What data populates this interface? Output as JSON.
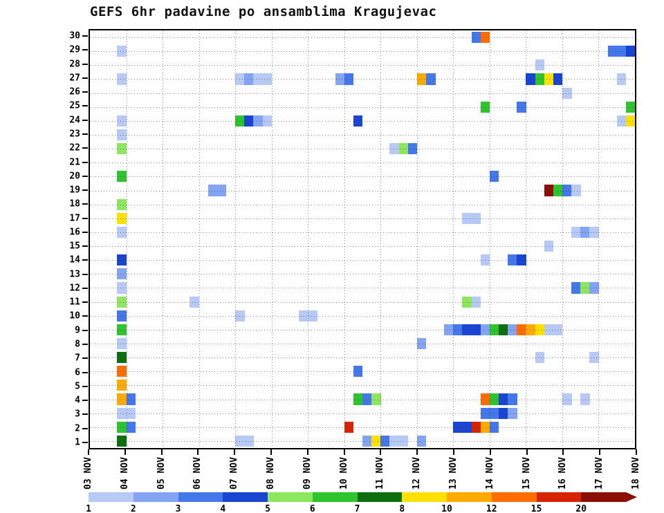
{
  "page": {
    "background": "#ffffff"
  },
  "chart_data": {
    "type": "heatmap",
    "title": "GEFS 6hr padavine po ansamblima Kragujevac",
    "x_tick_labels": [
      "03 NOV",
      "04 NOV",
      "05 NOV",
      "06 NOV",
      "07 NOV",
      "08 NOV",
      "09 NOV",
      "10 NOV",
      "11 NOV",
      "12 NOV",
      "13 NOV",
      "14 NOV",
      "15 NOV",
      "16 NOV",
      "17 NOV",
      "18 NOV"
    ],
    "steps_per_day": 4,
    "y_tick_labels": [
      30,
      29,
      28,
      27,
      26,
      25,
      24,
      23,
      22,
      21,
      20,
      19,
      18,
      17,
      16,
      15,
      14,
      13,
      12,
      11,
      10,
      9,
      8,
      7,
      6,
      5,
      4,
      3,
      2,
      1
    ],
    "legend_levels": [
      "1",
      "2",
      "3",
      "4",
      "5",
      "6",
      "7",
      "8",
      "10",
      "12",
      "15",
      "20"
    ],
    "palette": {
      "1": "#b7c9f7",
      "2": "#82a4f2",
      "3": "#4478ea",
      "4": "#1a45d2",
      "5": "#8ee65e",
      "6": "#2ec42e",
      "7": "#0e6f10",
      "8": "#ffe000",
      "10": "#ffaa00",
      "12": "#ff6c00",
      "15": "#d62300",
      "20": "#8c0f05"
    },
    "grid": "dotted",
    "legend_position": "bottom",
    "cells": [
      [
        30,
        42,
        3
      ],
      [
        30,
        43,
        12
      ],
      [
        29,
        3,
        1
      ],
      [
        29,
        57,
        3
      ],
      [
        29,
        58,
        3
      ],
      [
        29,
        59,
        4
      ],
      [
        28,
        49,
        1
      ],
      [
        27,
        3,
        1
      ],
      [
        27,
        16,
        1
      ],
      [
        27,
        17,
        2
      ],
      [
        27,
        18,
        1
      ],
      [
        27,
        19,
        1
      ],
      [
        27,
        27,
        2
      ],
      [
        27,
        28,
        3
      ],
      [
        27,
        36,
        10
      ],
      [
        27,
        37,
        3
      ],
      [
        27,
        48,
        4
      ],
      [
        27,
        49,
        6
      ],
      [
        27,
        50,
        8
      ],
      [
        27,
        51,
        4
      ],
      [
        27,
        58,
        1
      ],
      [
        26,
        52,
        1
      ],
      [
        25,
        43,
        6
      ],
      [
        25,
        47,
        3
      ],
      [
        25,
        59,
        6
      ],
      [
        24,
        3,
        1
      ],
      [
        24,
        16,
        6
      ],
      [
        24,
        17,
        4
      ],
      [
        24,
        18,
        2
      ],
      [
        24,
        19,
        1
      ],
      [
        24,
        29,
        4
      ],
      [
        24,
        58,
        1
      ],
      [
        24,
        59,
        8
      ],
      [
        23,
        3,
        1
      ],
      [
        22,
        3,
        5
      ],
      [
        22,
        33,
        1
      ],
      [
        22,
        34,
        5
      ],
      [
        22,
        35,
        3
      ],
      [
        20,
        3,
        6
      ],
      [
        20,
        44,
        3
      ],
      [
        19,
        13,
        2
      ],
      [
        19,
        14,
        2
      ],
      [
        19,
        50,
        20
      ],
      [
        19,
        51,
        6
      ],
      [
        19,
        52,
        3
      ],
      [
        19,
        53,
        1
      ],
      [
        18,
        3,
        5
      ],
      [
        17,
        3,
        8
      ],
      [
        17,
        41,
        1
      ],
      [
        17,
        42,
        1
      ],
      [
        16,
        3,
        1
      ],
      [
        16,
        53,
        1
      ],
      [
        16,
        54,
        2
      ],
      [
        16,
        55,
        1
      ],
      [
        15,
        50,
        1
      ],
      [
        14,
        3,
        4
      ],
      [
        14,
        43,
        1
      ],
      [
        14,
        46,
        3
      ],
      [
        14,
        47,
        4
      ],
      [
        13,
        3,
        2
      ],
      [
        12,
        3,
        1
      ],
      [
        12,
        53,
        3
      ],
      [
        12,
        54,
        5
      ],
      [
        12,
        55,
        2
      ],
      [
        11,
        3,
        5
      ],
      [
        11,
        11,
        1
      ],
      [
        11,
        41,
        5
      ],
      [
        11,
        42,
        1
      ],
      [
        10,
        3,
        3
      ],
      [
        10,
        16,
        1
      ],
      [
        10,
        23,
        1
      ],
      [
        10,
        24,
        1
      ],
      [
        9,
        3,
        6
      ],
      [
        9,
        39,
        2
      ],
      [
        9,
        40,
        3
      ],
      [
        9,
        41,
        4
      ],
      [
        9,
        42,
        4
      ],
      [
        9,
        43,
        2
      ],
      [
        9,
        44,
        6
      ],
      [
        9,
        45,
        7
      ],
      [
        9,
        46,
        2
      ],
      [
        9,
        47,
        12
      ],
      [
        9,
        48,
        10
      ],
      [
        9,
        49,
        8
      ],
      [
        9,
        50,
        1
      ],
      [
        9,
        51,
        1
      ],
      [
        8,
        3,
        1
      ],
      [
        8,
        36,
        2
      ],
      [
        7,
        3,
        7
      ],
      [
        7,
        49,
        1
      ],
      [
        7,
        55,
        1
      ],
      [
        6,
        3,
        12
      ],
      [
        6,
        29,
        3
      ],
      [
        5,
        3,
        10
      ],
      [
        4,
        3,
        10
      ],
      [
        4,
        4,
        3
      ],
      [
        4,
        29,
        6
      ],
      [
        4,
        30,
        3
      ],
      [
        4,
        31,
        5
      ],
      [
        4,
        43,
        12
      ],
      [
        4,
        44,
        6
      ],
      [
        4,
        45,
        4
      ],
      [
        4,
        46,
        3
      ],
      [
        4,
        52,
        1
      ],
      [
        4,
        54,
        1
      ],
      [
        3,
        3,
        1
      ],
      [
        3,
        4,
        1
      ],
      [
        3,
        43,
        3
      ],
      [
        3,
        44,
        3
      ],
      [
        3,
        45,
        4
      ],
      [
        3,
        46,
        2
      ],
      [
        2,
        3,
        6
      ],
      [
        2,
        4,
        3
      ],
      [
        2,
        28,
        15
      ],
      [
        2,
        40,
        4
      ],
      [
        2,
        41,
        4
      ],
      [
        2,
        42,
        15
      ],
      [
        2,
        43,
        10
      ],
      [
        2,
        44,
        3
      ],
      [
        1,
        3,
        7
      ],
      [
        1,
        16,
        1
      ],
      [
        1,
        17,
        1
      ],
      [
        1,
        30,
        2
      ],
      [
        1,
        31,
        8
      ],
      [
        1,
        32,
        3
      ],
      [
        1,
        33,
        1
      ],
      [
        1,
        34,
        1
      ],
      [
        1,
        36,
        2
      ]
    ]
  }
}
